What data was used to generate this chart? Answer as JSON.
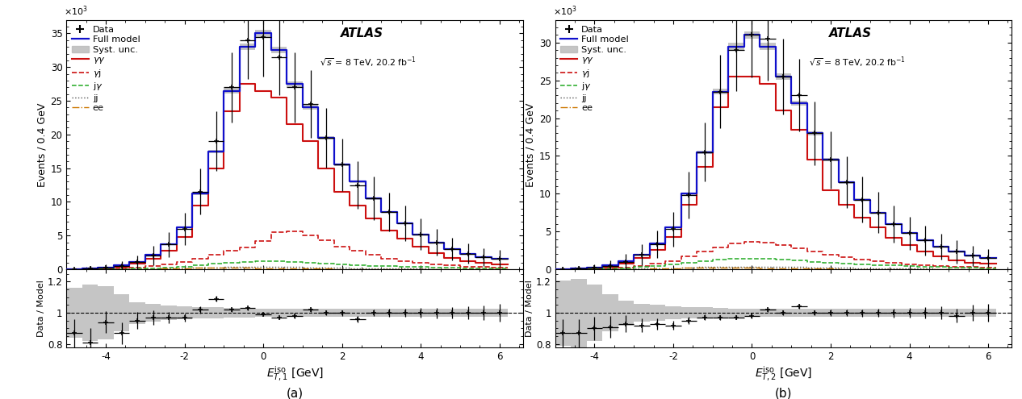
{
  "bin_edges": [
    -5.0,
    -4.6,
    -4.2,
    -3.8,
    -3.4,
    -3.0,
    -2.6,
    -2.2,
    -1.8,
    -1.4,
    -1.0,
    -0.6,
    -0.2,
    0.2,
    0.6,
    1.0,
    1.4,
    1.8,
    2.2,
    2.6,
    3.0,
    3.4,
    3.8,
    4.2,
    4.6,
    5.0,
    5.4,
    5.8,
    6.2
  ],
  "bin_width": 0.4,
  "panel_a": {
    "full_model": [
      0.05,
      0.12,
      0.25,
      0.55,
      1.1,
      2.1,
      3.7,
      6.2,
      11.2,
      17.5,
      26.5,
      33.0,
      35.0,
      32.5,
      27.5,
      24.0,
      19.5,
      15.5,
      13.0,
      10.5,
      8.5,
      6.8,
      5.2,
      4.0,
      3.0,
      2.3,
      1.8,
      1.6
    ],
    "gg": [
      0.03,
      0.08,
      0.15,
      0.38,
      0.85,
      1.55,
      2.7,
      4.8,
      9.5,
      15.0,
      23.5,
      27.5,
      26.5,
      25.5,
      21.5,
      19.0,
      15.0,
      11.5,
      9.5,
      7.5,
      5.8,
      4.5,
      3.3,
      2.4,
      1.7,
      1.2,
      0.9,
      0.75
    ],
    "gj": [
      0.01,
      0.02,
      0.05,
      0.12,
      0.22,
      0.45,
      0.75,
      1.1,
      1.6,
      2.2,
      2.7,
      3.2,
      4.2,
      5.5,
      5.6,
      5.0,
      4.3,
      3.3,
      2.7,
      2.1,
      1.6,
      1.25,
      0.95,
      0.75,
      0.55,
      0.4,
      0.3,
      0.22
    ],
    "jg": [
      0.005,
      0.01,
      0.02,
      0.04,
      0.08,
      0.15,
      0.25,
      0.4,
      0.6,
      0.8,
      1.0,
      1.1,
      1.15,
      1.15,
      1.05,
      0.95,
      0.85,
      0.72,
      0.62,
      0.52,
      0.44,
      0.37,
      0.3,
      0.25,
      0.2,
      0.16,
      0.13,
      0.1
    ],
    "jj": [
      0.003,
      0.005,
      0.01,
      0.018,
      0.035,
      0.06,
      0.1,
      0.15,
      0.22,
      0.28,
      0.32,
      0.35,
      0.35,
      0.34,
      0.32,
      0.28,
      0.25,
      0.2,
      0.17,
      0.13,
      0.11,
      0.09,
      0.07,
      0.055,
      0.044,
      0.035,
      0.028,
      0.022
    ],
    "ee": [
      0.002,
      0.003,
      0.006,
      0.012,
      0.025,
      0.05,
      0.09,
      0.14,
      0.19,
      0.21,
      0.21,
      0.19,
      0.17,
      0.14,
      0.11,
      0.09,
      0.075,
      0.06,
      0.048,
      0.038,
      0.03,
      0.022,
      0.016,
      0.012,
      0.009,
      0.007,
      0.005,
      0.004
    ],
    "data_y": [
      0.05,
      0.12,
      0.24,
      0.5,
      1.05,
      2.05,
      3.65,
      6.0,
      11.5,
      19.0,
      27.0,
      34.0,
      34.5,
      31.5,
      27.0,
      24.5,
      19.5,
      15.5,
      12.5,
      10.5,
      8.5,
      6.8,
      5.2,
      4.0,
      3.0,
      2.3,
      1.8,
      1.6
    ],
    "data_xerr": 0.2,
    "data_yerr": [
      0.22,
      0.35,
      0.5,
      0.7,
      1.0,
      1.4,
      1.9,
      2.4,
      3.4,
      4.4,
      5.2,
      5.8,
      5.9,
      5.6,
      5.2,
      5.0,
      4.4,
      3.9,
      3.5,
      3.2,
      2.9,
      2.6,
      2.3,
      2.0,
      1.7,
      1.5,
      1.3,
      1.25
    ],
    "ratio_y": [
      0.87,
      0.81,
      0.94,
      0.87,
      0.95,
      0.97,
      0.97,
      0.97,
      1.02,
      1.09,
      1.02,
      1.03,
      0.99,
      0.97,
      0.98,
      1.02,
      1.0,
      1.0,
      0.96,
      1.0,
      1.0,
      1.0,
      1.0,
      1.0,
      1.0,
      1.0,
      1.0,
      1.0
    ],
    "ratio_xerr": 0.2,
    "ratio_yerr": [
      0.09,
      0.09,
      0.07,
      0.07,
      0.055,
      0.045,
      0.035,
      0.028,
      0.022,
      0.018,
      0.014,
      0.012,
      0.012,
      0.012,
      0.013,
      0.014,
      0.016,
      0.018,
      0.02,
      0.022,
      0.024,
      0.027,
      0.03,
      0.033,
      0.038,
      0.042,
      0.048,
      0.055
    ],
    "syst_upper": [
      1.16,
      1.18,
      1.17,
      1.12,
      1.07,
      1.055,
      1.048,
      1.042,
      1.038,
      1.035,
      1.03,
      1.028,
      1.026,
      1.026,
      1.026,
      1.026,
      1.026,
      1.026,
      1.026,
      1.026,
      1.026,
      1.026,
      1.026,
      1.026,
      1.026,
      1.026,
      1.026,
      1.026
    ],
    "syst_lower": [
      0.84,
      0.82,
      0.83,
      0.88,
      0.93,
      0.945,
      0.952,
      0.958,
      0.962,
      0.965,
      0.97,
      0.972,
      0.974,
      0.974,
      0.974,
      0.974,
      0.974,
      0.974,
      0.974,
      0.974,
      0.974,
      0.974,
      0.974,
      0.974,
      0.974,
      0.974,
      0.974,
      0.974
    ],
    "xlabel": "$E_{T,1}^{\\mathrm{iso}}$ [GeV]",
    "panel_label": "(a)",
    "ylim_main": [
      0,
      37
    ],
    "yticks_main": [
      0,
      5,
      10,
      15,
      20,
      25,
      30,
      35
    ]
  },
  "panel_b": {
    "full_model": [
      0.05,
      0.11,
      0.22,
      0.52,
      1.05,
      1.95,
      3.4,
      5.5,
      10.0,
      15.5,
      23.5,
      29.5,
      31.0,
      29.5,
      25.5,
      22.0,
      18.0,
      14.5,
      11.5,
      9.2,
      7.5,
      6.0,
      4.8,
      3.8,
      3.0,
      2.3,
      1.8,
      1.5
    ],
    "gg": [
      0.03,
      0.07,
      0.14,
      0.36,
      0.8,
      1.5,
      2.6,
      4.3,
      8.5,
      13.5,
      21.5,
      25.5,
      25.5,
      24.5,
      21.0,
      18.5,
      14.5,
      10.5,
      8.5,
      6.8,
      5.5,
      4.2,
      3.2,
      2.4,
      1.7,
      1.2,
      0.9,
      0.7
    ],
    "gj": [
      0.01,
      0.02,
      0.04,
      0.1,
      0.22,
      0.44,
      0.72,
      1.1,
      1.7,
      2.4,
      2.9,
      3.4,
      3.6,
      3.5,
      3.2,
      2.8,
      2.3,
      1.9,
      1.6,
      1.3,
      1.05,
      0.85,
      0.68,
      0.55,
      0.44,
      0.35,
      0.28,
      0.22
    ],
    "jg": [
      0.007,
      0.014,
      0.028,
      0.065,
      0.14,
      0.27,
      0.44,
      0.65,
      0.9,
      1.1,
      1.3,
      1.4,
      1.4,
      1.4,
      1.3,
      1.15,
      1.0,
      0.88,
      0.77,
      0.66,
      0.57,
      0.49,
      0.41,
      0.35,
      0.29,
      0.24,
      0.19,
      0.15
    ],
    "jj": [
      0.003,
      0.005,
      0.01,
      0.018,
      0.035,
      0.06,
      0.1,
      0.15,
      0.22,
      0.28,
      0.32,
      0.35,
      0.35,
      0.34,
      0.32,
      0.28,
      0.25,
      0.2,
      0.17,
      0.13,
      0.11,
      0.09,
      0.07,
      0.055,
      0.044,
      0.035,
      0.028,
      0.022
    ],
    "ee": [
      0.002,
      0.003,
      0.006,
      0.012,
      0.025,
      0.05,
      0.09,
      0.14,
      0.19,
      0.21,
      0.21,
      0.19,
      0.17,
      0.14,
      0.11,
      0.09,
      0.075,
      0.06,
      0.048,
      0.038,
      0.03,
      0.022,
      0.016,
      0.012,
      0.009,
      0.007,
      0.005,
      0.004
    ],
    "data_y": [
      0.05,
      0.1,
      0.21,
      0.48,
      1.0,
      1.9,
      3.3,
      5.3,
      9.8,
      15.5,
      23.5,
      29.0,
      31.0,
      30.5,
      25.5,
      23.0,
      18.0,
      14.5,
      11.5,
      9.2,
      7.5,
      6.0,
      4.8,
      3.8,
      3.0,
      2.3,
      1.8,
      1.5
    ],
    "data_xerr": 0.2,
    "data_yerr": [
      0.22,
      0.32,
      0.46,
      0.69,
      1.0,
      1.38,
      1.82,
      2.3,
      3.1,
      3.9,
      4.85,
      5.4,
      5.57,
      5.52,
      5.05,
      4.8,
      4.24,
      3.8,
      3.39,
      3.03,
      2.74,
      2.45,
      2.19,
      1.95,
      1.73,
      1.52,
      1.34,
      1.22
    ],
    "ratio_y": [
      0.87,
      0.87,
      0.9,
      0.91,
      0.93,
      0.92,
      0.93,
      0.92,
      0.95,
      0.97,
      0.97,
      0.97,
      0.98,
      1.02,
      1.0,
      1.04,
      1.0,
      1.0,
      1.0,
      1.0,
      1.0,
      1.0,
      1.0,
      1.0,
      1.0,
      0.98,
      1.0,
      1.0
    ],
    "ratio_xerr": 0.2,
    "ratio_yerr": [
      0.09,
      0.09,
      0.075,
      0.07,
      0.055,
      0.046,
      0.037,
      0.029,
      0.023,
      0.018,
      0.015,
      0.013,
      0.013,
      0.013,
      0.014,
      0.015,
      0.017,
      0.019,
      0.021,
      0.023,
      0.026,
      0.028,
      0.032,
      0.036,
      0.04,
      0.044,
      0.05,
      0.057
    ],
    "syst_upper": [
      1.21,
      1.22,
      1.18,
      1.12,
      1.08,
      1.058,
      1.05,
      1.043,
      1.038,
      1.035,
      1.03,
      1.028,
      1.026,
      1.026,
      1.026,
      1.026,
      1.026,
      1.026,
      1.026,
      1.026,
      1.026,
      1.026,
      1.026,
      1.026,
      1.026,
      1.026,
      1.026,
      1.026
    ],
    "syst_lower": [
      0.79,
      0.78,
      0.82,
      0.88,
      0.92,
      0.942,
      0.95,
      0.957,
      0.962,
      0.965,
      0.97,
      0.972,
      0.974,
      0.974,
      0.974,
      0.974,
      0.974,
      0.974,
      0.974,
      0.974,
      0.974,
      0.974,
      0.974,
      0.974,
      0.974,
      0.974,
      0.974,
      0.974
    ],
    "xlabel": "$E_{T,2}^{\\mathrm{iso}}$ [GeV]",
    "panel_label": "(b)",
    "ylim_main": [
      0,
      33
    ],
    "yticks_main": [
      0,
      5,
      10,
      15,
      20,
      25,
      30
    ]
  },
  "ylabel_main": "Events / 0.4 GeV",
  "ylabel_ratio": "Data / Model",
  "ylim_ratio": [
    0.78,
    1.28
  ],
  "yticks_ratio": [
    0.8,
    1.0,
    1.2
  ],
  "color_full_model": "#1010CC",
  "color_gg": "#CC1010",
  "color_gj": "#CC1010",
  "color_jg": "#22AA22",
  "color_jj": "#555555",
  "color_ee": "#CC7700",
  "color_syst": "#BBBBBB",
  "atlas_label": "ATLAS",
  "energy_label": "$\\sqrt{s}$ = 8 TeV, 20.2 fb$^{-1}$"
}
